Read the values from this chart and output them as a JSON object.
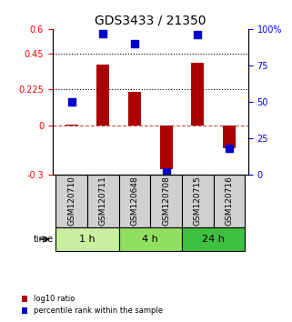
{
  "title": "GDS3433 / 21350",
  "samples": [
    "GSM120710",
    "GSM120711",
    "GSM120648",
    "GSM120708",
    "GSM120715",
    "GSM120716"
  ],
  "groups": [
    {
      "label": "1 h",
      "indices": [
        0,
        1
      ],
      "color": "#c8f0a0"
    },
    {
      "label": "4 h",
      "indices": [
        2,
        3
      ],
      "color": "#90e060"
    },
    {
      "label": "24 h",
      "indices": [
        4,
        5
      ],
      "color": "#40c040"
    }
  ],
  "log10_ratio": [
    0.01,
    0.38,
    0.21,
    -0.27,
    0.39,
    -0.14
  ],
  "percentile_rank": [
    50,
    97,
    90,
    2,
    96,
    18
  ],
  "bar_color": "#aa0000",
  "dot_color": "#0000cc",
  "ylim_left": [
    -0.3,
    0.6
  ],
  "ylim_right": [
    0,
    100
  ],
  "yticks_left": [
    -0.3,
    0,
    0.225,
    0.45,
    0.6
  ],
  "ytick_labels_left": [
    "-0.3",
    "0",
    "0.225",
    "0.45",
    "0.6"
  ],
  "yticks_right": [
    0,
    25,
    50,
    75,
    100
  ],
  "ytick_labels_right": [
    "0",
    "25",
    "50",
    "75",
    "100%"
  ],
  "hlines_dotted": [
    0.225,
    0.45
  ],
  "hline_dashed": 0,
  "background_color": "#ffffff",
  "plot_bg_color": "#ffffff",
  "bar_width": 0.4,
  "legend_labels": [
    "log10 ratio",
    "percentile rank within the sample"
  ],
  "legend_colors": [
    "#aa0000",
    "#0000cc"
  ]
}
